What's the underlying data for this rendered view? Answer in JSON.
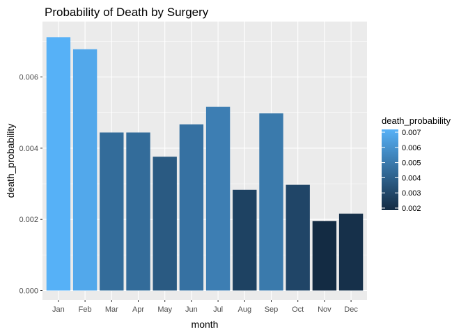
{
  "chart_data": {
    "type": "bar",
    "title": "Probability of Death by Surgery",
    "xlabel": "month",
    "ylabel": "death_probability",
    "categories": [
      "Jan",
      "Feb",
      "Mar",
      "Apr",
      "May",
      "Jun",
      "Jul",
      "Aug",
      "Sep",
      "Oct",
      "Nov",
      "Dec"
    ],
    "values": [
      0.00712,
      0.00678,
      0.00444,
      0.00444,
      0.00376,
      0.00467,
      0.00516,
      0.00283,
      0.00498,
      0.00297,
      0.00195,
      0.00216
    ],
    "ylim": [
      0,
      0.0073
    ],
    "yticks": [
      "0.000",
      "0.002",
      "0.004",
      "0.006"
    ],
    "ytick_values": [
      0,
      0.002,
      0.004,
      0.006
    ],
    "grid": true,
    "legend": {
      "title": "death_probability",
      "placement": "right",
      "labels": [
        "0.007",
        "0.006",
        "0.005",
        "0.004",
        "0.003",
        "0.002"
      ],
      "label_values": [
        0.007,
        0.006,
        0.005,
        0.004,
        0.003,
        0.002
      ]
    },
    "colors": {
      "low": "#132B43",
      "high": "#56B1F7",
      "panel": "#EBEBEB",
      "gridline": "#FFFFFF"
    }
  }
}
